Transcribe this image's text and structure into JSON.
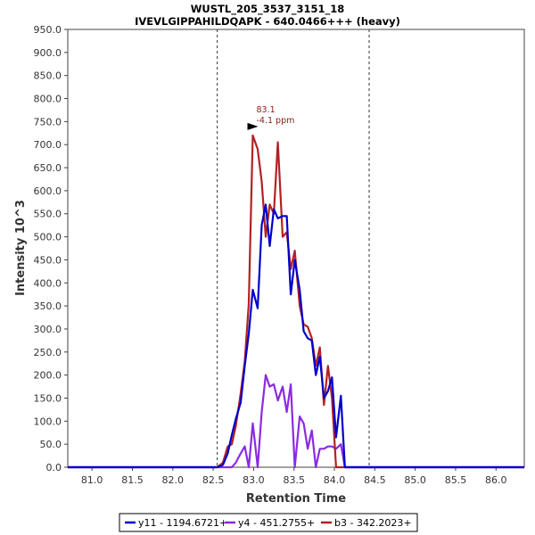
{
  "chart_data": {
    "type": "line",
    "title": "WUSTL_205_3537_3151_18",
    "subtitle": "IVEVLGIPPAHILDQAPK - 640.0466+++ (heavy)",
    "xlabel": "Retention Time",
    "ylabel": "Intensity 10^3",
    "xlim": [
      80.7,
      86.35
    ],
    "ylim": [
      0,
      950
    ],
    "x_ticks": [
      "81.0",
      "81.5",
      "82.0",
      "82.5",
      "83.0",
      "83.5",
      "84.0",
      "84.5",
      "85.0",
      "85.5",
      "86.0"
    ],
    "y_ticks": [
      "0.0",
      "50.0",
      "100.0",
      "150.0",
      "200.0",
      "250.0",
      "300.0",
      "350.0",
      "400.0",
      "450.0",
      "500.0",
      "550.0",
      "600.0",
      "650.0",
      "700.0",
      "750.0",
      "800.0",
      "850.0",
      "900.0",
      "950.0"
    ],
    "integration_bounds": [
      82.55,
      84.43
    ],
    "legend_position": "bottom",
    "grid": false,
    "annotation": {
      "x": 83.1,
      "y": 720,
      "label_1": "83.1",
      "label_2": "-4.1 ppm",
      "color": "#8b1a1a"
    },
    "series": [
      {
        "name": "y11 - 1194.6721+",
        "color": "#0000cc",
        "x": [
          80.7,
          82.55,
          82.62,
          82.68,
          82.73,
          82.78,
          82.84,
          82.89,
          82.94,
          82.99,
          83.05,
          83.1,
          83.15,
          83.2,
          83.25,
          83.3,
          83.36,
          83.41,
          83.46,
          83.51,
          83.57,
          83.62,
          83.67,
          83.72,
          83.77,
          83.82,
          83.87,
          83.92,
          83.97,
          84.02,
          84.08,
          84.13,
          84.18,
          84.23,
          84.27,
          84.29,
          86.35
        ],
        "y": [
          0,
          0,
          5,
          30,
          70,
          105,
          140,
          220,
          290,
          385,
          345,
          525,
          570,
          480,
          560,
          540,
          545,
          545,
          375,
          450,
          385,
          295,
          280,
          275,
          200,
          240,
          150,
          165,
          195,
          65,
          155,
          0,
          0,
          0,
          0,
          0,
          0
        ]
      },
      {
        "name": "y4 - 451.2755+",
        "color": "#8a2be2",
        "x": [
          80.7,
          82.55,
          82.62,
          82.68,
          82.73,
          82.78,
          82.84,
          82.89,
          82.94,
          82.99,
          83.05,
          83.1,
          83.15,
          83.2,
          83.25,
          83.3,
          83.36,
          83.41,
          83.46,
          83.51,
          83.57,
          83.62,
          83.67,
          83.72,
          83.77,
          83.82,
          83.87,
          83.92,
          83.97,
          84.02,
          84.08,
          84.13,
          84.18,
          84.23,
          84.27,
          84.29,
          86.35
        ],
        "y": [
          0,
          0,
          0,
          0,
          0,
          10,
          30,
          45,
          0,
          95,
          0,
          120,
          200,
          175,
          180,
          145,
          175,
          120,
          180,
          0,
          110,
          95,
          40,
          80,
          0,
          40,
          40,
          45,
          45,
          40,
          50,
          0,
          0,
          0,
          0,
          0,
          0
        ]
      },
      {
        "name": "b3 - 342.2023+",
        "color": "#b22222",
        "x": [
          80.7,
          82.55,
          82.62,
          82.68,
          82.73,
          82.78,
          82.84,
          82.89,
          82.94,
          82.99,
          83.05,
          83.1,
          83.15,
          83.2,
          83.25,
          83.3,
          83.36,
          83.41,
          83.46,
          83.51,
          83.57,
          83.62,
          83.67,
          83.72,
          83.77,
          83.82,
          83.87,
          83.92,
          83.97,
          84.02,
          84.08,
          84.13,
          84.18,
          84.23,
          84.27,
          84.29,
          86.35
        ],
        "y": [
          0,
          0,
          10,
          45,
          50,
          90,
          160,
          230,
          355,
          720,
          690,
          620,
          500,
          570,
          550,
          705,
          500,
          510,
          430,
          470,
          350,
          310,
          305,
          280,
          220,
          260,
          135,
          220,
          150,
          0,
          0,
          0,
          0,
          0,
          0,
          0,
          0
        ]
      }
    ]
  }
}
